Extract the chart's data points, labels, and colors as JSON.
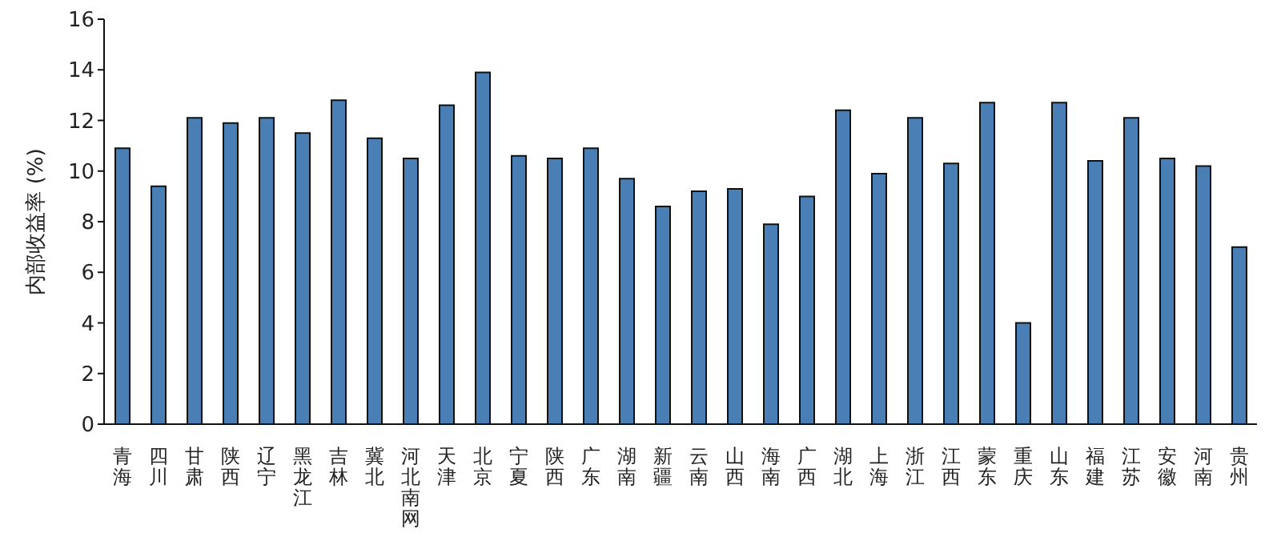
{
  "chart_data": {
    "type": "bar",
    "ylabel": "内部收益率 (%)",
    "categories": [
      "青海",
      "四川",
      "甘肃",
      "陕西",
      "辽宁",
      "黑龙江",
      "吉林",
      "冀北",
      "河北南网",
      "天津",
      "北京",
      "宁夏",
      "陕西",
      "广东",
      "湖南",
      "新疆",
      "云南",
      "山西",
      "海南",
      "广西",
      "湖北",
      "上海",
      "浙江",
      "江西",
      "蒙东",
      "重庆",
      "山东",
      "福建",
      "江苏",
      "安徽",
      "河南",
      "贵州"
    ],
    "values": [
      10.9,
      9.4,
      12.1,
      11.9,
      12.1,
      11.5,
      12.8,
      11.3,
      10.5,
      12.6,
      13.9,
      10.6,
      10.5,
      10.9,
      9.7,
      8.6,
      9.2,
      9.3,
      7.9,
      9.0,
      12.4,
      9.9,
      12.1,
      10.3,
      12.7,
      4.0,
      12.7,
      10.4,
      12.1,
      10.5,
      10.2,
      7.0
    ],
    "color": "#4a7fb5",
    "ylim": [
      0,
      16
    ],
    "yticks": [
      0,
      2,
      4,
      6,
      8,
      10,
      12,
      14,
      16
    ],
    "grid": false,
    "legend": false
  }
}
